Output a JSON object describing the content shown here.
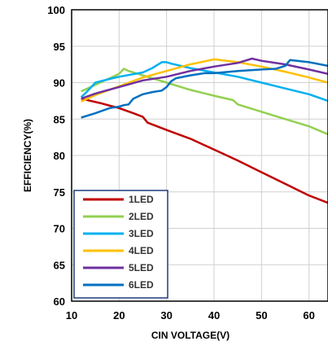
{
  "chart_data": {
    "type": "line",
    "title": "",
    "xlabel": "CIN VOLTAGE(V)",
    "ylabel": "EFFICIENCY(%)",
    "xlim": [
      10,
      64
    ],
    "ylim": [
      60,
      100
    ],
    "xticks": [
      10,
      20,
      30,
      40,
      50,
      60
    ],
    "yticks": [
      60,
      65,
      70,
      75,
      80,
      85,
      90,
      95,
      100
    ],
    "grid": true,
    "legend_position": "bottom-left",
    "series": [
      {
        "name": "1LED",
        "color": "#c00000",
        "x": [
          12,
          16,
          20,
          23,
          25,
          26,
          30,
          35,
          40,
          45,
          50,
          55,
          60,
          64
        ],
        "y": [
          87.8,
          87.2,
          86.5,
          85.8,
          85.3,
          84.5,
          83.5,
          82.3,
          80.8,
          79.3,
          77.7,
          76.1,
          74.5,
          73.5
        ]
      },
      {
        "name": "2LED",
        "color": "#92d050",
        "x": [
          12,
          15,
          18,
          20,
          21,
          22,
          25,
          30,
          35,
          40,
          44,
          45,
          50,
          55,
          60,
          64
        ],
        "y": [
          88.8,
          89.7,
          90.6,
          91.2,
          91.9,
          91.6,
          91.0,
          90.0,
          89.0,
          88.2,
          87.6,
          87.0,
          86.0,
          85.0,
          84.0,
          82.9
        ]
      },
      {
        "name": "3LED",
        "color": "#00b0f0",
        "x": [
          12,
          13,
          15,
          18,
          20,
          25,
          27,
          29,
          30,
          31,
          35,
          40,
          45,
          50,
          55,
          60,
          64
        ],
        "y": [
          88.0,
          88.6,
          90.0,
          90.5,
          90.8,
          91.4,
          92.0,
          92.8,
          92.8,
          92.6,
          92.0,
          91.4,
          90.8,
          90.0,
          89.2,
          88.4,
          87.5
        ]
      },
      {
        "name": "4LED",
        "color": "#ffc000",
        "x": [
          12,
          15,
          20,
          25,
          30,
          35,
          40,
          45,
          50,
          55,
          60,
          64
        ],
        "y": [
          87.4,
          88.3,
          89.5,
          90.7,
          91.6,
          92.5,
          93.2,
          92.8,
          92.2,
          91.5,
          90.7,
          90.0
        ]
      },
      {
        "name": "5LED",
        "color": "#7030a0",
        "x": [
          12,
          15,
          20,
          25,
          30,
          35,
          40,
          45,
          48,
          50,
          55,
          60,
          64
        ],
        "y": [
          87.8,
          88.5,
          89.4,
          90.3,
          90.8,
          91.6,
          92.2,
          92.7,
          93.3,
          93.0,
          92.5,
          91.8,
          91.2
        ]
      },
      {
        "name": "6LED",
        "color": "#0070c0",
        "x": [
          12,
          15,
          18,
          20,
          21,
          22,
          23,
          25,
          27,
          29,
          30,
          31,
          32,
          35,
          38,
          40,
          45,
          50,
          53,
          55,
          56,
          60,
          64
        ],
        "y": [
          85.2,
          85.8,
          86.5,
          86.7,
          86.9,
          87.0,
          87.8,
          88.4,
          88.7,
          88.9,
          89.4,
          90.2,
          90.6,
          91.0,
          91.3,
          91.3,
          91.6,
          91.8,
          91.9,
          92.3,
          93.1,
          92.8,
          92.3
        ]
      }
    ]
  }
}
